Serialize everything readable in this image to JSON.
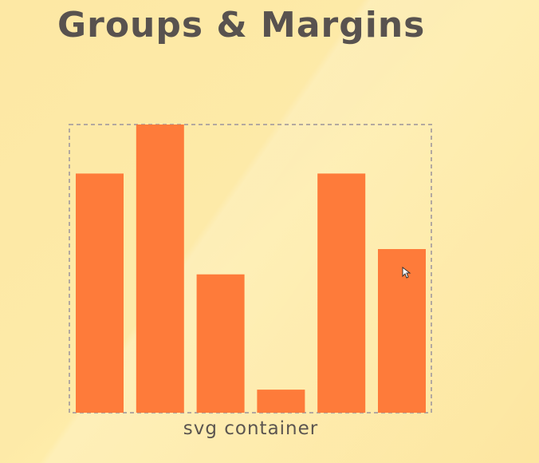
{
  "page": {
    "title": "Groups & Margins"
  },
  "chart_data": {
    "type": "bar",
    "caption": "svg container",
    "values": [
      415,
      500,
      240,
      40,
      415,
      284
    ],
    "ylim": [
      0,
      500
    ],
    "bar_color": "#fe7b3a",
    "container_border_color": "#b3a9a0",
    "grid": false
  }
}
